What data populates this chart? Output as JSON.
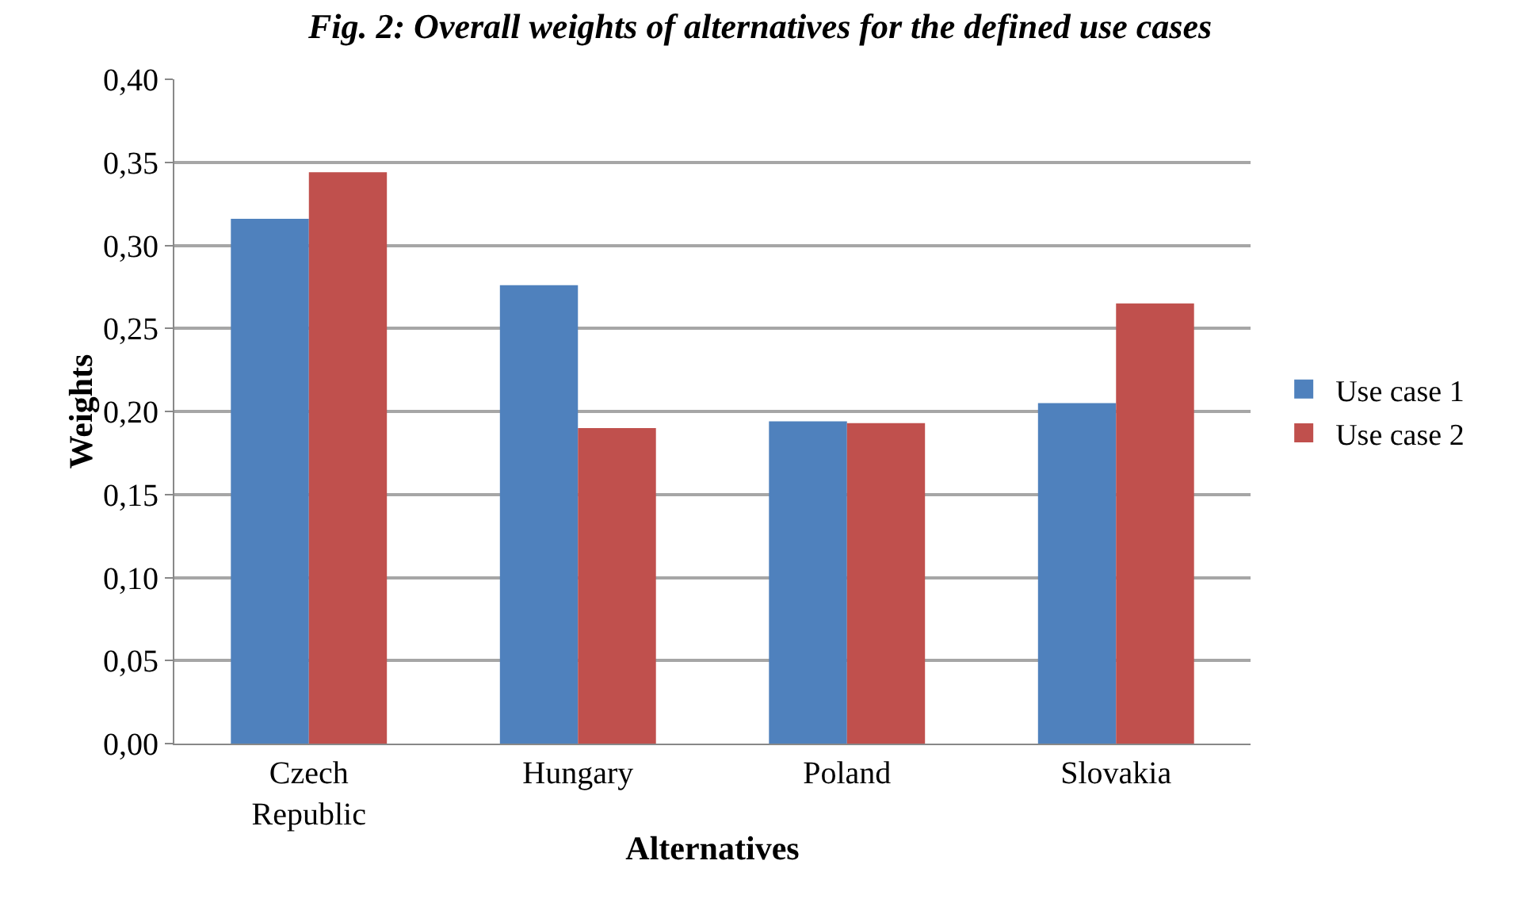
{
  "chart_data": {
    "type": "bar",
    "title": "Fig. 2: Overall weights of alternatives for the defined use cases",
    "xlabel": "Alternatives",
    "ylabel": "Weights",
    "categories": [
      "Czech Republic",
      "Hungary",
      "Poland",
      "Slovakia"
    ],
    "series": [
      {
        "name": "Use case 1",
        "color": "#4f81bd",
        "values": [
          0.316,
          0.276,
          0.194,
          0.205
        ]
      },
      {
        "name": "Use case 2",
        "color": "#c0504d",
        "values": [
          0.344,
          0.19,
          0.193,
          0.265
        ]
      }
    ],
    "ylim": [
      0,
      0.4
    ],
    "yticks": [
      {
        "value": 0,
        "label": "0,00"
      },
      {
        "value": 0.05,
        "label": "0,05"
      },
      {
        "value": 0.1,
        "label": "0,10"
      },
      {
        "value": 0.15,
        "label": "0,15"
      },
      {
        "value": 0.2,
        "label": "0,20"
      },
      {
        "value": 0.25,
        "label": "0,25"
      },
      {
        "value": 0.3,
        "label": "0,30"
      },
      {
        "value": 0.35,
        "label": "0,35"
      },
      {
        "value": 0.4,
        "label": "0,40"
      }
    ],
    "grid": "y",
    "legend": "right"
  }
}
